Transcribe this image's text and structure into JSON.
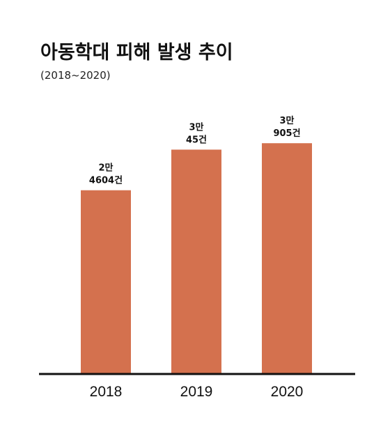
{
  "chart_data": {
    "type": "bar",
    "title": "아동학대 피해 발생 추이",
    "subtitle": "(2018~2020)",
    "categories": [
      "2018",
      "2019",
      "2020"
    ],
    "values": [
      24604,
      30045,
      30905
    ],
    "data_labels": [
      [
        "2만",
        "4604건"
      ],
      [
        "3만",
        "45건"
      ],
      [
        "3만",
        "905건"
      ]
    ],
    "xlabel": "",
    "ylabel": "",
    "ylim": [
      0,
      37000
    ],
    "grid": false,
    "bar_color": "#D4714E",
    "axis_color": "#111111"
  }
}
